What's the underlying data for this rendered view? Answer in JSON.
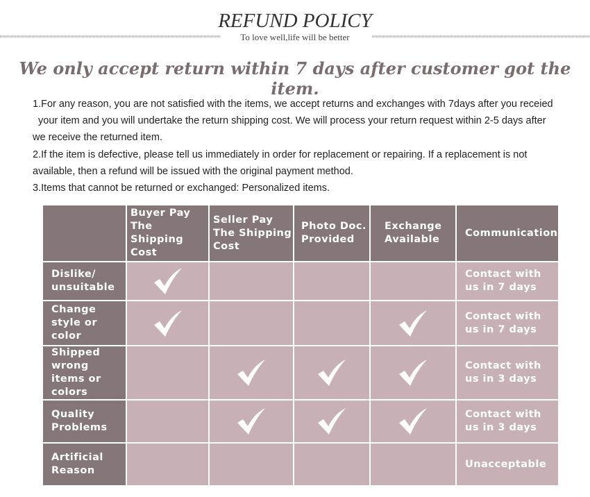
{
  "header": {
    "title": "REFUND POLICY",
    "subtitle": "To love well,life will be better"
  },
  "headline": "We only accept return within 7 days after customer got the item.",
  "terms": [
    "1.For any reason, you are not satisfied with the items, we accept returns and exchanges with 7days after you receied",
    "your item and you will undertake the return shipping cost. We will process your return request within 2-5 days after",
    "we receive the returned item.",
    "2.If the item is defective, please tell us immediately in order for replacement or repairing. If a replacement is not",
    "available, then a refund will be issued with the original payment method.",
    "3.Items that cannot be returned or exchanged: Personalized items."
  ],
  "table": {
    "columns": [
      "",
      "Buyer Pay The Shipping Cost",
      "Seller Pay The Shipping Cost",
      "Photo Doc. Provided",
      "Exchange Available",
      "Communication"
    ],
    "rows": [
      {
        "label": "Dislike/ unsuitable",
        "checks": [
          true,
          false,
          false,
          false
        ],
        "communication": "Contact with us in 7 days"
      },
      {
        "label": "Change style or color",
        "checks": [
          true,
          false,
          false,
          true
        ],
        "communication": "Contact with us in 7 days"
      },
      {
        "label": "Shipped wrong items or colors",
        "checks": [
          false,
          true,
          true,
          true
        ],
        "communication": "Contact with us in 3 days"
      },
      {
        "label": "Quality Problems",
        "checks": [
          false,
          true,
          true,
          true
        ],
        "communication": "Contact with us in 3 days"
      },
      {
        "label": "Artificial Reason",
        "checks": [
          false,
          false,
          false,
          false
        ],
        "communication": "Unacceptable"
      }
    ]
  },
  "colors": {
    "header_cell": "#857679",
    "body_cell": "#c8b1b6",
    "headline": "#7a6d70"
  },
  "icons": {
    "check": "checkmark-icon"
  }
}
